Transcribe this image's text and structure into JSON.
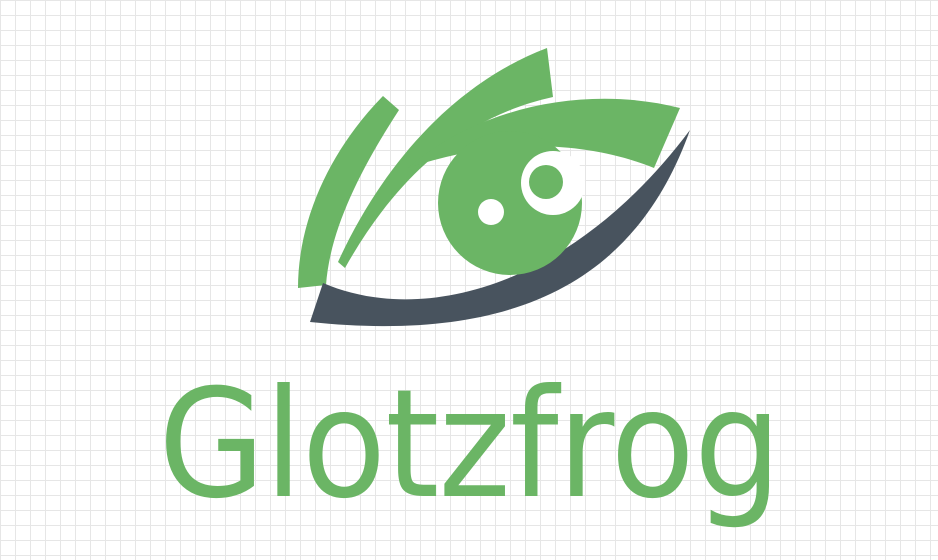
{
  "brand": {
    "name": "Glotzfrog",
    "colors": {
      "primary": "#6bb565",
      "secondary": "#48535e",
      "grid": "#e6e6e6",
      "background": "#ffffff"
    },
    "icon": "eye-icon"
  }
}
